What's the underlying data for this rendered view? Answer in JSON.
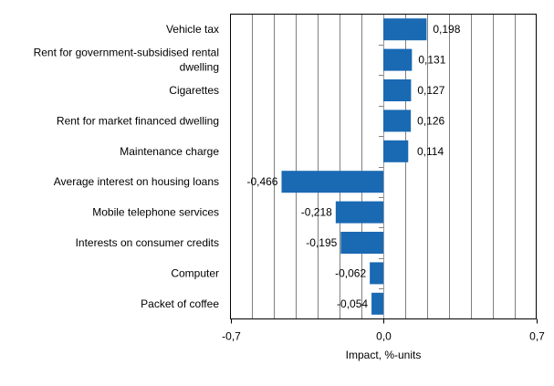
{
  "chart_data": {
    "type": "bar",
    "orientation": "horizontal",
    "categories": [
      [
        "Vehicle tax"
      ],
      [
        "Rent for government-subsidised rental",
        "dwelling"
      ],
      [
        "Cigarettes"
      ],
      [
        "Rent for market financed dwelling"
      ],
      [
        "Maintenance charge"
      ],
      [
        "Average interest on housing loans"
      ],
      [
        "Mobile telephone services"
      ],
      [
        "Interests on consumer credits"
      ],
      [
        "Computer"
      ],
      [
        "Packet of coffee"
      ]
    ],
    "values": [
      0.198,
      0.131,
      0.127,
      0.126,
      0.114,
      -0.466,
      -0.218,
      -0.195,
      -0.062,
      -0.054
    ],
    "data_labels": [
      "0,198",
      "0,131",
      "0,127",
      "0,126",
      "0,114",
      "-0,466",
      "-0,218",
      "-0,195",
      "-0,062",
      "-0,054"
    ],
    "xlabel": "Impact, %-units",
    "xlim": [
      -0.7,
      0.7
    ],
    "xticks": [
      -0.7,
      0,
      0.7
    ],
    "xtick_labels": [
      "-0,7",
      "0,0",
      "0,7"
    ],
    "grid_step": 0.1,
    "grid": true,
    "bar_color": "#1a69b3"
  }
}
